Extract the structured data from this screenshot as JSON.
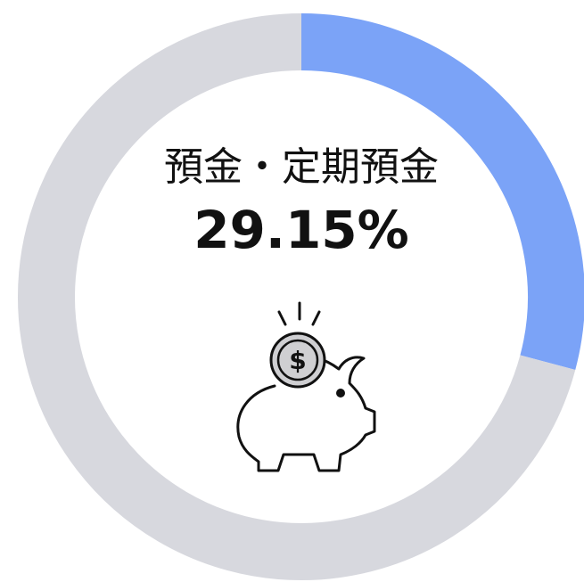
{
  "chart_data": {
    "type": "donut",
    "categories": [
      "預金・定期預金",
      null
    ],
    "values": [
      29.15,
      70.85
    ],
    "value_labels": [
      "29.15%",
      null
    ],
    "colors": [
      "#7ba3f7",
      "#d7d8de"
    ]
  }
}
